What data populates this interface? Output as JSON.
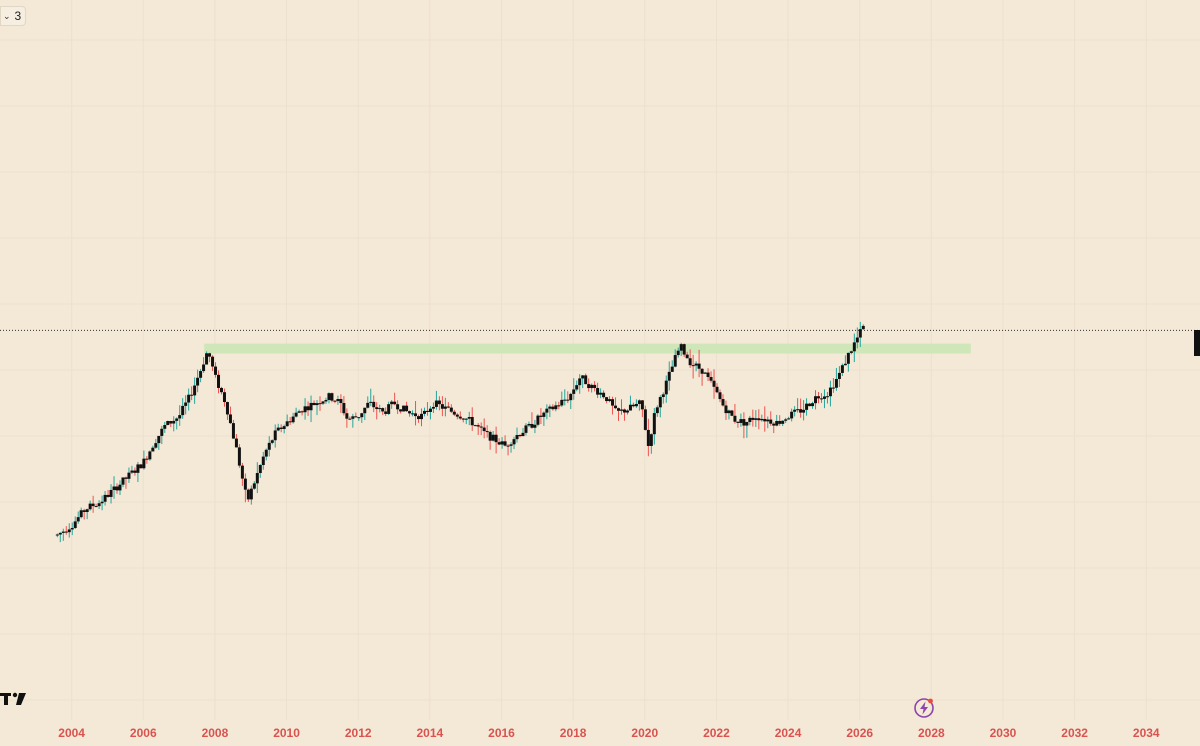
{
  "toolbar": {
    "interval_label": "3",
    "chevron_icon": "chevron-down-icon"
  },
  "colors": {
    "background": "#f4e8d7",
    "grid": "#ece0cd",
    "zone": "#cfe6b8",
    "candle": "#111111",
    "candle_up": "#26a69a",
    "candle_down": "#ef5350",
    "axis_label": "#d9534f",
    "price_line": "#333333",
    "flash": "#8e44ad"
  },
  "icons": {
    "logo": "tradingview-logo-icon",
    "flash": "lightning-bolt-icon"
  },
  "chart_data": {
    "type": "line",
    "title": "",
    "xlabel": "",
    "ylabel": "",
    "x_ticks": [
      "2004",
      "2006",
      "2008",
      "2010",
      "2012",
      "2014",
      "2016",
      "2018",
      "2020",
      "2022",
      "2024",
      "2026",
      "2028",
      "2030",
      "2032",
      "2034"
    ],
    "xlim": [
      2002.0,
      2035.5
    ],
    "ylim": [
      0,
      100
    ],
    "grid": true,
    "price_scale_visible": false,
    "current_price_line": 56,
    "zone": {
      "x_start": 2007.7,
      "x_end": 2029.1,
      "y_low": 52.5,
      "y_high": 54.0
    },
    "series": [
      {
        "x": [
          2003.6,
          2004.0,
          2004.4,
          2004.8,
          2005.2,
          2005.6,
          2006.0,
          2006.3,
          2006.6,
          2007.0,
          2007.3,
          2007.6,
          2007.8,
          2008.0,
          2008.3,
          2008.6,
          2008.9,
          2009.1,
          2009.4,
          2009.7,
          2010.0,
          2010.4,
          2010.8,
          2011.2,
          2011.5,
          2011.7,
          2012.0,
          2012.3,
          2012.7,
          2013.0,
          2013.4,
          2013.8,
          2014.1,
          2014.5,
          2014.9,
          2015.2,
          2015.5,
          2015.8,
          2016.1,
          2016.4,
          2016.8,
          2017.1,
          2017.5,
          2017.9,
          2018.2,
          2018.5,
          2018.9,
          2019.2,
          2019.5,
          2019.9,
          2020.1,
          2020.3,
          2020.6,
          2020.9,
          2021.0,
          2021.3,
          2021.6,
          2021.9,
          2022.2,
          2022.5,
          2022.8,
          2023.1,
          2023.4,
          2023.7,
          2024.0,
          2024.4,
          2024.8,
          2025.1,
          2025.4,
          2025.7,
          2026.0,
          2026.1
        ],
        "y": [
          25.0,
          26.5,
          29.0,
          30.0,
          32.0,
          34.0,
          36.0,
          39.0,
          41.5,
          43.0,
          46.0,
          50.0,
          53.0,
          49.0,
          45.0,
          38.0,
          30.0,
          33.0,
          37.5,
          40.5,
          42.0,
          44.0,
          45.0,
          46.0,
          45.0,
          42.5,
          43.0,
          45.0,
          43.5,
          45.0,
          43.5,
          43.0,
          45.0,
          44.0,
          43.0,
          42.0,
          40.5,
          39.5,
          38.5,
          40.0,
          41.5,
          43.0,
          44.5,
          46.0,
          49.0,
          47.5,
          46.0,
          43.5,
          44.0,
          45.0,
          38.5,
          44.0,
          48.0,
          52.5,
          53.5,
          51.0,
          50.0,
          47.5,
          44.5,
          42.5,
          42.0,
          43.0,
          42.5,
          42.0,
          43.0,
          44.0,
          46.0,
          46.5,
          49.0,
          52.5,
          55.5,
          56.5
        ]
      }
    ]
  }
}
